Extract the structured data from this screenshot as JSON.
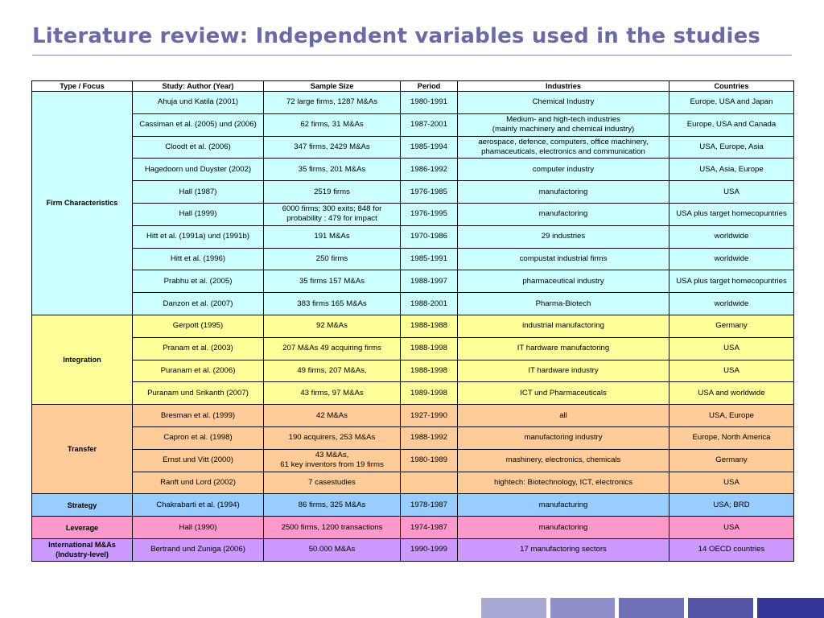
{
  "title": "Literature review: Independent variables used in the studies",
  "table": {
    "headers": [
      "Type / Focus",
      "Study: Author (Year)",
      "Sample Size",
      "Period",
      "Industries",
      "Countries"
    ],
    "groups": [
      {
        "focus": [
          "Firm Characteristics"
        ],
        "rows": [
          {
            "study": "Ahuja und Katila (2001)",
            "sample": [
              "72 large firms, 1287 M&As"
            ],
            "period": "1980-1991",
            "industries": [
              "Chemical Industry"
            ],
            "countries": "Europe, USA and Japan"
          },
          {
            "study": "Cassiman et al. (2005) und (2006)",
            "sample": [
              "62 firms, 31 M&As"
            ],
            "period": "1987-2001",
            "industries": [
              "Medium- and high-tech industries",
              "(mainly machinery and chemical industry)"
            ],
            "countries": "Europe, USA and Canada"
          },
          {
            "study": "Cloodt et al. (2006)",
            "sample": [
              "347 firms, 2429 M&As"
            ],
            "period": "1985-1994",
            "industries": [
              "aerospace,  defence, computers, office machinery,",
              "phamaceuticals, electronics and communication"
            ],
            "countries": "USA, Europe, Asia"
          },
          {
            "study": "Hagedoorn und Duyster (2002)",
            "sample": [
              "35 firms, 201 M&As"
            ],
            "period": "1986-1992",
            "industries": [
              "computer industry"
            ],
            "countries": "USA, Asia, Europe"
          },
          {
            "study": "Hall (1987)",
            "sample": [
              "2519 firms"
            ],
            "period": "1976-1985",
            "industries": [
              "manufactoring"
            ],
            "countries": "USA"
          },
          {
            "study": "Hall (1999)",
            "sample": [
              "6000 firms; 300 exits; 848 for",
              "probability ; 479 for impact"
            ],
            "period": "1976-1995",
            "industries": [
              "manufactoring"
            ],
            "countries": "USA plus target homecopuntries"
          },
          {
            "study": "Hitt et al. (1991a) und (1991b)",
            "sample": [
              "191 M&As"
            ],
            "period": "1970-1986",
            "industries": [
              "29 industries"
            ],
            "countries": "worldwide"
          },
          {
            "study": "Hitt et al. (1996)",
            "sample": [
              "250 firms"
            ],
            "period": "1985-1991",
            "industries": [
              "compustat industrial firms"
            ],
            "countries": "worldwide"
          },
          {
            "study": "Prabhu et al. (2005)",
            "sample": [
              "35 firms 157 M&As"
            ],
            "period": "1988-1997",
            "industries": [
              "pharmaceutical industry"
            ],
            "countries": "USA plus target homecopuntries"
          },
          {
            "study": "Danzon et al. (2007)",
            "sample": [
              "383 firms 165 M&As"
            ],
            "period": "1988-2001",
            "industries": [
              "Pharma-Biotech"
            ],
            "countries": "worldwide"
          }
        ]
      },
      {
        "focus": [
          "Integration"
        ],
        "rows": [
          {
            "study": "Gerpott (1995)",
            "sample": [
              "92 M&As"
            ],
            "period": "1988-1988",
            "industries": [
              "industrial manufactoring"
            ],
            "countries": "Germany"
          },
          {
            "study": "Pranam et al. (2003)",
            "sample": [
              "207 M&As 49 acquiring firms"
            ],
            "period": "1988-1998",
            "industries": [
              "IT hardware manufactoring"
            ],
            "countries": "USA"
          },
          {
            "study": "Puranam et al. (2006)",
            "sample": [
              "49 firms, 207 M&As,"
            ],
            "period": "1988-1998",
            "industries": [
              "IT hardware industry"
            ],
            "countries": "USA"
          },
          {
            "study": "Puranam und Srikanth (2007)",
            "sample": [
              "43 firms, 97 M&As"
            ],
            "period": "1989-1998",
            "industries": [
              "ICT und Pharmaceuticals"
            ],
            "countries": "USA and worldwide"
          }
        ]
      },
      {
        "focus": [
          "Transfer"
        ],
        "rows": [
          {
            "study": "Bresman et al. (1999)",
            "sample": [
              "42 M&As"
            ],
            "period": "1927-1990",
            "industries": [
              "all"
            ],
            "countries": "USA, Europe"
          },
          {
            "study": "Capron et al. (1998)",
            "sample": [
              "190 acquirers, 253 M&As"
            ],
            "period": "1988-1992",
            "industries": [
              "manufactoring industry"
            ],
            "countries": "Europe, North America"
          },
          {
            "study": "Ernst und Vitt (2000)",
            "sample": [
              "43 M&As,",
              "61 key inventors from 19 firms"
            ],
            "period": "1980-1989",
            "industries": [
              "mashinery, electronics, chemicals"
            ],
            "countries": "Germany"
          },
          {
            "study": "Ranft und Lord (2002)",
            "sample": [
              "7 casestudies"
            ],
            "period": "",
            "industries": [
              "hightech: Biotechnology, ICT, electronics"
            ],
            "countries": "USA"
          }
        ]
      },
      {
        "focus": [
          "Strategy"
        ],
        "rows": [
          {
            "study": "Chakrabarti et al. (1994)",
            "sample": [
              "86 firms, 325 M&As"
            ],
            "period": "1978-1987",
            "industries": [
              "manufacturing"
            ],
            "countries": "USA; BRD"
          }
        ]
      },
      {
        "focus": [
          "Leverage"
        ],
        "rows": [
          {
            "study": "Hall (1990)",
            "sample": [
              "2500 firms, 1200 transactions"
            ],
            "period": "1974-1987",
            "industries": [
              "manufactoring"
            ],
            "countries": "USA"
          }
        ]
      },
      {
        "focus": [
          "International M&As",
          "(Industry-level)"
        ],
        "rows": [
          {
            "study": "Bertrand und Zuniga (2006)",
            "sample": [
              "50.000 M&As"
            ],
            "period": "1990-1999",
            "industries": [
              "17 manufactoring sectors"
            ],
            "countries": "14 OECD countries"
          }
        ]
      }
    ]
  },
  "colors": {
    "title": "#6a6aa6",
    "firm": "#ccffff",
    "integration": "#ffff99",
    "transfer": "#ffcc99",
    "strategy": "#99ccff",
    "leverage": "#ff99cc",
    "international": "#cc99ff",
    "footer_blocks": [
      "#a8a8d4",
      "#8f8fca",
      "#7070b8",
      "#5656a8",
      "#35359a"
    ]
  }
}
